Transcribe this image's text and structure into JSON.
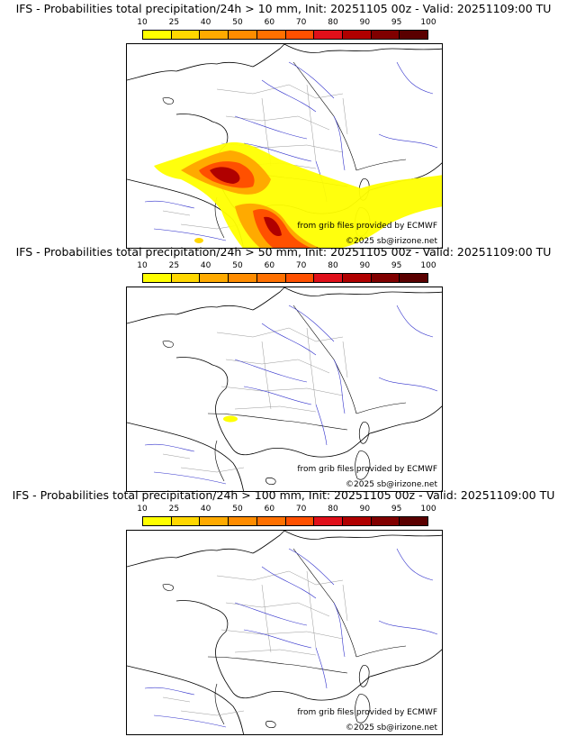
{
  "panels": [
    {
      "title": "IFS - Probabilities total precipitation/24h > 10 mm, Init: 20251105 00z - Valid: 20251109:00 TU",
      "threshold_mm": 10
    },
    {
      "title": "IFS - Probabilities total precipitation/24h > 50 mm, Init: 20251105 00z - Valid: 20251109:00 TU",
      "threshold_mm": 50
    },
    {
      "title": "IFS - Probabilities total precipitation/24h > 100 mm, Init: 20251105 00z - Valid: 20251109:00 TU",
      "threshold_mm": 100
    }
  ],
  "scale": {
    "ticks": [
      "10",
      "25",
      "40",
      "50",
      "60",
      "70",
      "80",
      "90",
      "95",
      "100"
    ],
    "colors": [
      "#ffff00",
      "#ffd700",
      "#ffaa00",
      "#ff8c00",
      "#ff7000",
      "#ff5000",
      "#e0101a",
      "#b00000",
      "#800000",
      "#5a0000"
    ]
  },
  "credits": {
    "source": "from grib files provided by ECMWF",
    "copyright": "©2025 sb@irizone.net"
  },
  "map": {
    "coastline_color": "#000000",
    "river_color": "#3333cc",
    "border_color": "#999999"
  }
}
